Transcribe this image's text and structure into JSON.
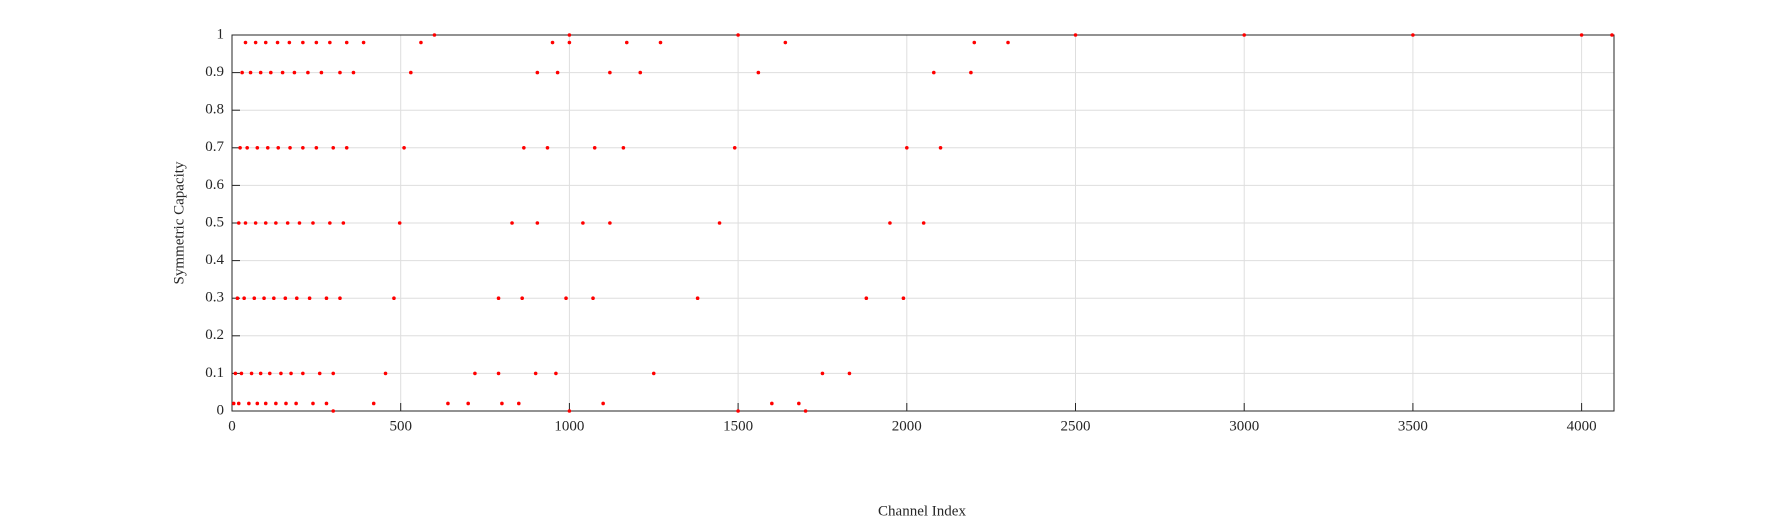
{
  "chart_data": {
    "type": "scatter",
    "xlabel": "Channel Index",
    "ylabel": "Symmetric Capacity",
    "xlim": [
      0,
      4096
    ],
    "ylim": [
      0,
      1
    ],
    "xticks": [
      0,
      500,
      1000,
      1500,
      2000,
      2500,
      3000,
      3500,
      4000
    ],
    "yticks": [
      0,
      0.1,
      0.2,
      0.3,
      0.4,
      0.5,
      0.6,
      0.7,
      0.8,
      0.9,
      1
    ],
    "grid": true,
    "color": "#ff0000",
    "x": [
      5,
      10,
      16,
      20,
      24,
      30,
      40,
      20,
      28,
      36,
      40,
      45,
      55,
      70,
      50,
      58,
      66,
      70,
      75,
      85,
      100,
      75,
      85,
      95,
      100,
      106,
      115,
      135,
      100,
      112,
      124,
      130,
      137,
      150,
      170,
      130,
      145,
      158,
      165,
      172,
      185,
      210,
      160,
      175,
      192,
      200,
      210,
      225,
      250,
      190,
      210,
      230,
      240,
      250,
      265,
      290,
      240,
      260,
      280,
      290,
      300,
      320,
      340,
      280,
      300,
      320,
      330,
      340,
      360,
      390,
      420,
      455,
      480,
      497,
      510,
      530,
      560,
      640,
      720,
      790,
      830,
      865,
      905,
      950,
      700,
      790,
      860,
      905,
      935,
      965,
      1000,
      800,
      900,
      990,
      1040,
      1075,
      1120,
      1170,
      850,
      960,
      1070,
      1120,
      1160,
      1210,
      1270,
      1100,
      1250,
      1380,
      1445,
      1490,
      1560,
      1640,
      1600,
      1750,
      1880,
      1950,
      2000,
      2080,
      2200,
      1680,
      1830,
      1990,
      2050,
      2100,
      2190,
      2300,
      600,
      1000,
      1500,
      2500,
      3000,
      3500,
      4000,
      4090,
      300,
      1000,
      1500,
      1700
    ],
    "values": [
      0.02,
      0.1,
      0.3,
      0.5,
      0.7,
      0.9,
      0.98,
      0.02,
      0.1,
      0.3,
      0.5,
      0.7,
      0.9,
      0.98,
      0.02,
      0.1,
      0.3,
      0.5,
      0.7,
      0.9,
      0.98,
      0.02,
      0.1,
      0.3,
      0.5,
      0.7,
      0.9,
      0.98,
      0.02,
      0.1,
      0.3,
      0.5,
      0.7,
      0.9,
      0.98,
      0.02,
      0.1,
      0.3,
      0.5,
      0.7,
      0.9,
      0.98,
      0.02,
      0.1,
      0.3,
      0.5,
      0.7,
      0.9,
      0.98,
      0.02,
      0.1,
      0.3,
      0.5,
      0.7,
      0.9,
      0.98,
      0.02,
      0.1,
      0.3,
      0.5,
      0.7,
      0.9,
      0.98,
      0.02,
      0.1,
      0.3,
      0.5,
      0.7,
      0.9,
      0.98,
      0.02,
      0.1,
      0.3,
      0.5,
      0.7,
      0.9,
      0.98,
      0.02,
      0.1,
      0.3,
      0.5,
      0.7,
      0.9,
      0.98,
      0.02,
      0.1,
      0.3,
      0.5,
      0.7,
      0.9,
      0.98,
      0.02,
      0.1,
      0.3,
      0.5,
      0.7,
      0.9,
      0.98,
      0.02,
      0.1,
      0.3,
      0.5,
      0.7,
      0.9,
      0.98,
      0.02,
      0.1,
      0.3,
      0.5,
      0.7,
      0.9,
      0.98,
      0.02,
      0.1,
      0.3,
      0.5,
      0.7,
      0.9,
      0.98,
      0.02,
      0.1,
      0.3,
      0.5,
      0.7,
      0.9,
      0.98,
      1,
      1,
      1,
      1,
      1,
      1,
      1,
      1,
      0,
      0,
      0,
      0
    ]
  }
}
